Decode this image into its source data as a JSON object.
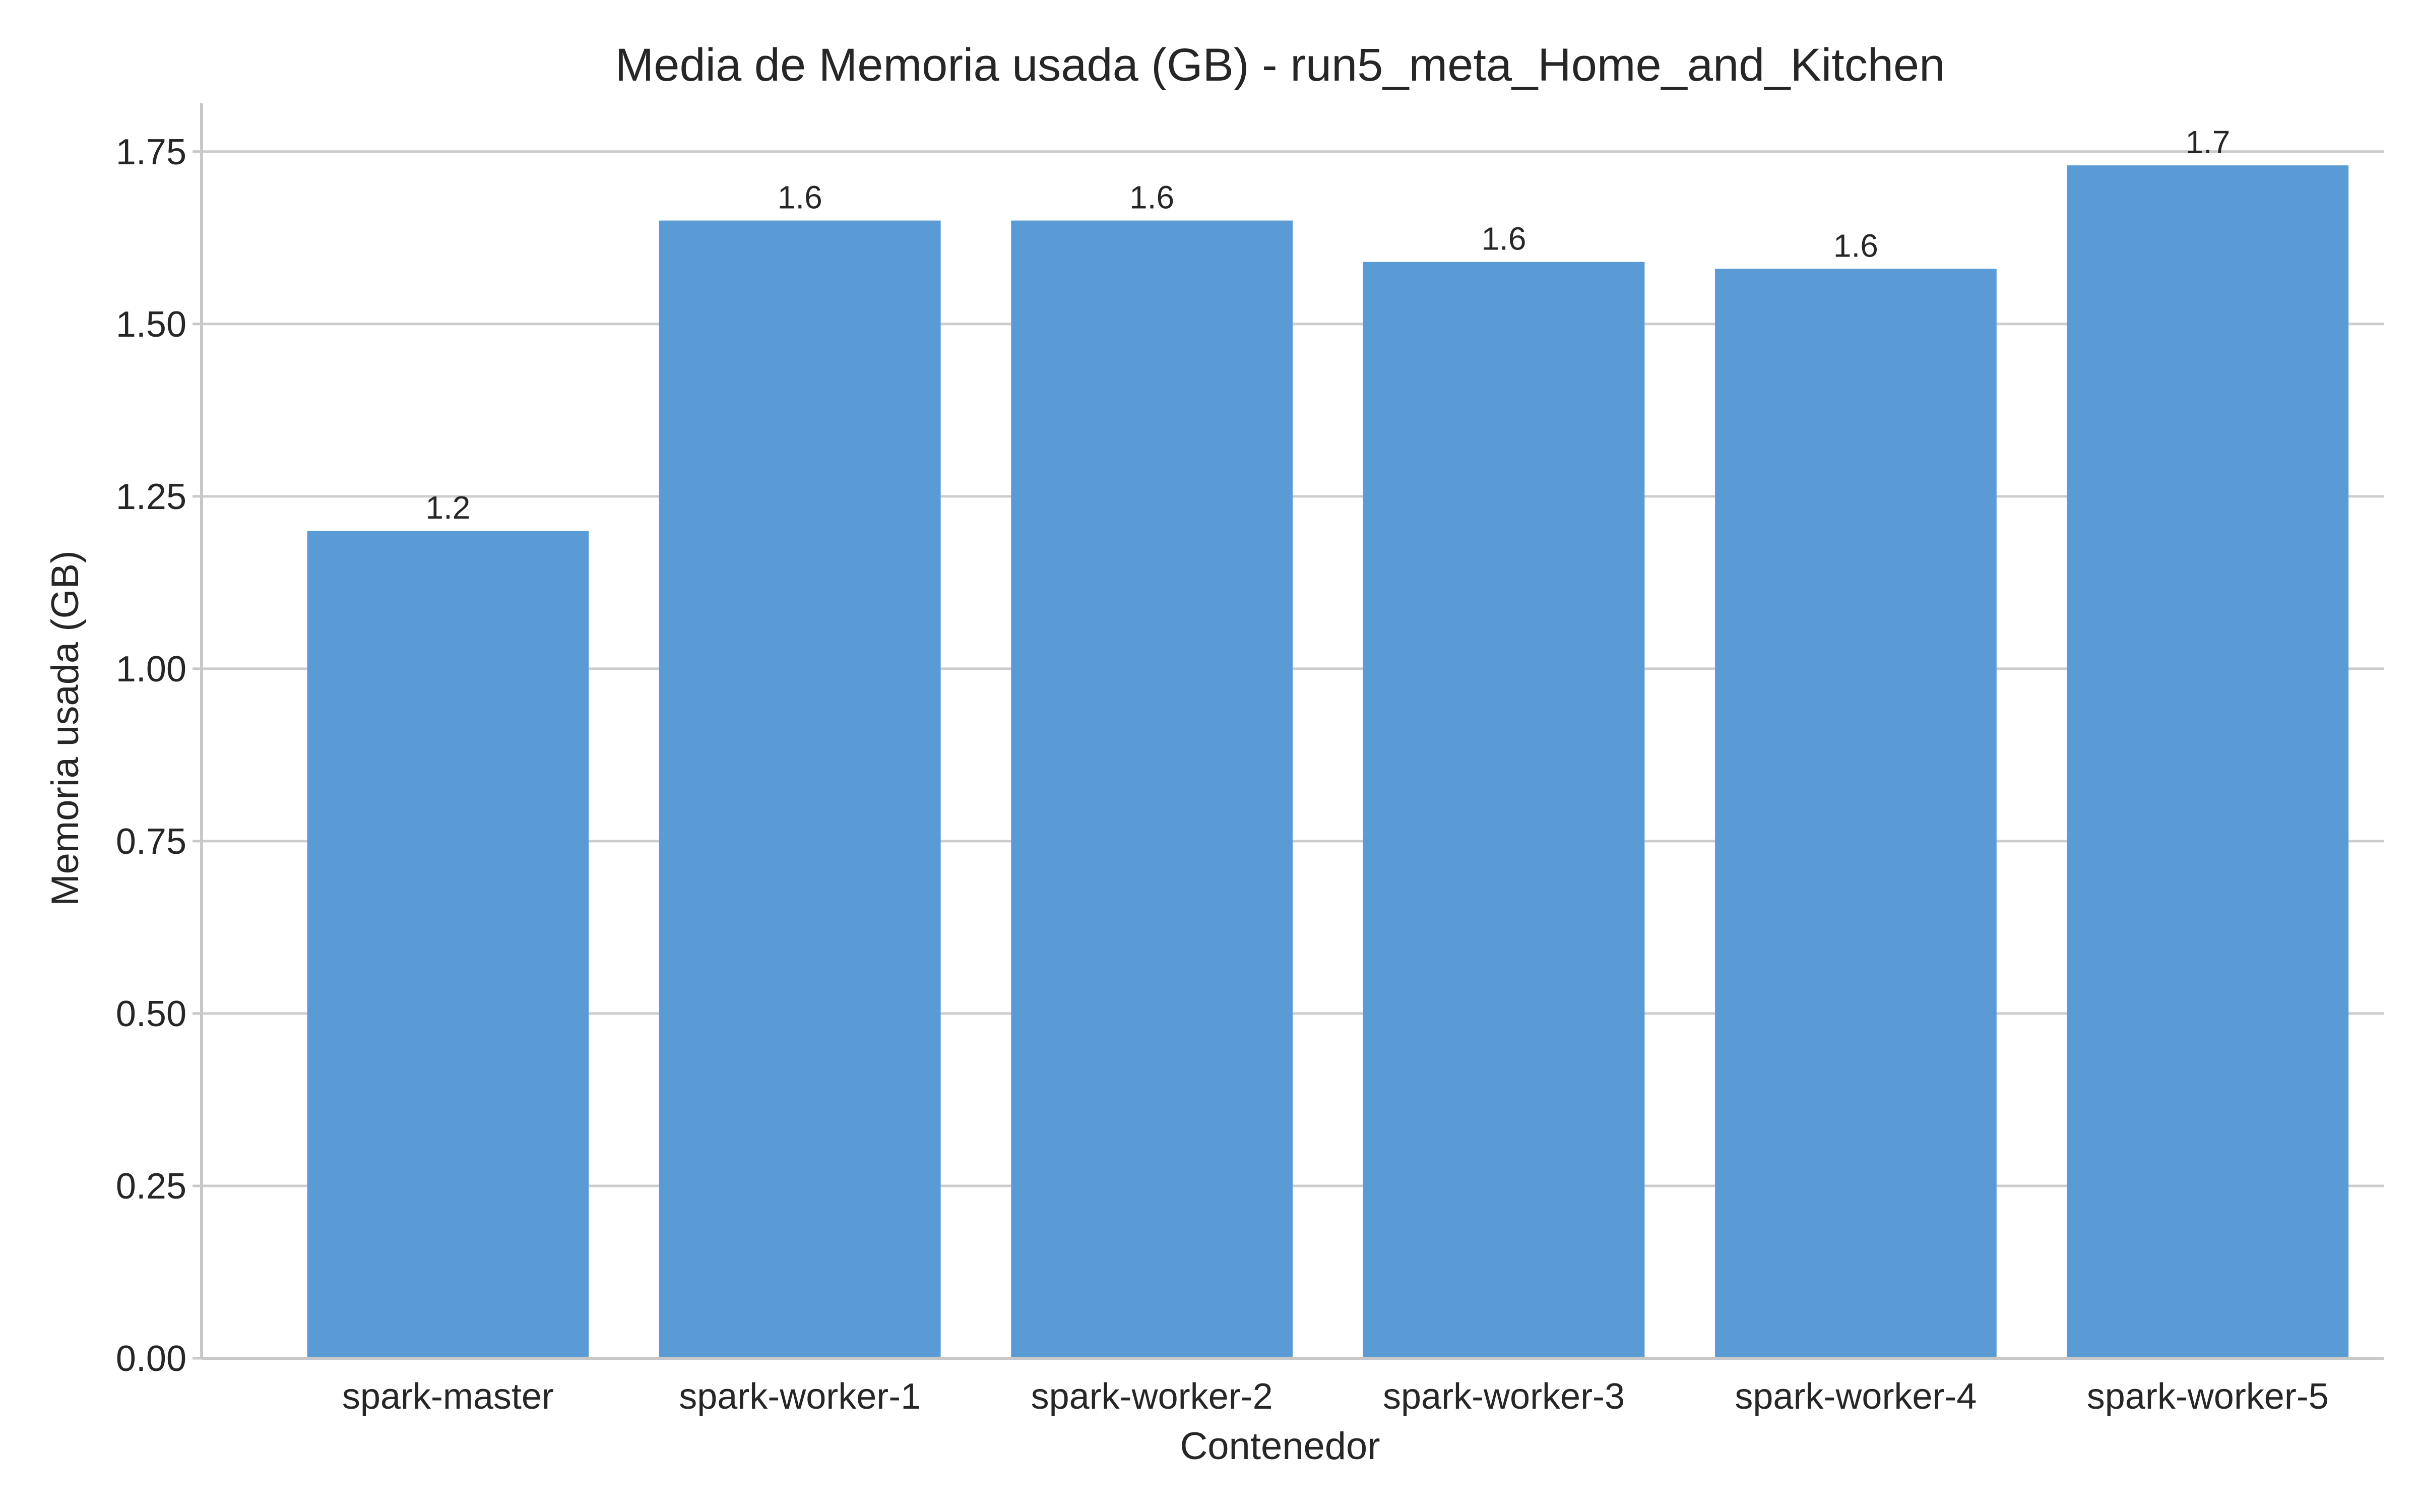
{
  "chart_data": {
    "type": "bar",
    "title": "Media de Memoria usada (GB) - run5_meta_Home_and_Kitchen",
    "xlabel": "Contenedor",
    "ylabel": "Memoria usada (GB)",
    "categories": [
      "spark-master",
      "spark-worker-1",
      "spark-worker-2",
      "spark-worker-3",
      "spark-worker-4",
      "spark-worker-5"
    ],
    "values": [
      1.2,
      1.65,
      1.65,
      1.59,
      1.58,
      1.73
    ],
    "data_labels": [
      "1.2",
      "1.6",
      "1.6",
      "1.6",
      "1.6",
      "1.7"
    ],
    "ylim": [
      0,
      1.82
    ],
    "yticks": [
      0,
      0.25,
      0.5,
      0.75,
      1.0,
      1.25,
      1.5,
      1.75
    ],
    "ytick_labels": [
      "0.00",
      "0.25",
      "0.50",
      "0.75",
      "1.00",
      "1.25",
      "1.50",
      "1.75"
    ],
    "grid": "horizontal",
    "legend": "none",
    "colors": {
      "bar": "#5b9bd5",
      "grid": "#cccccc",
      "spine": "#c8c8c8",
      "text": "#262626"
    }
  }
}
